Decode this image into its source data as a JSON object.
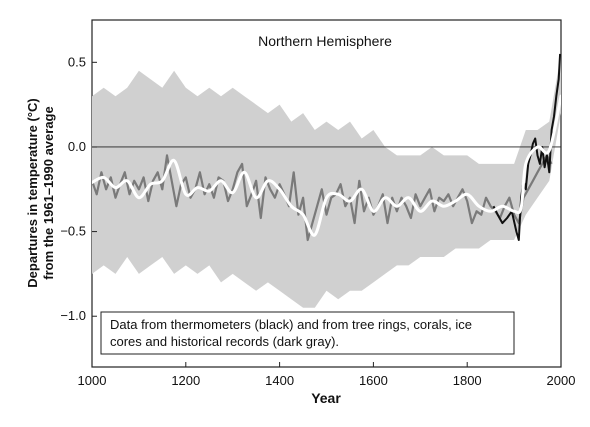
{
  "chart_data": {
    "type": "line",
    "title": "Northern Hemisphere",
    "xlabel": "Year",
    "ylabel_lines": [
      "Departures in temperature (°C)",
      "from the 1961–1990 average"
    ],
    "xlim": [
      1000,
      2000
    ],
    "ylim": [
      -1.3,
      0.75
    ],
    "x_ticks": [
      1000,
      1200,
      1400,
      1600,
      1800,
      2000
    ],
    "y_ticks": [
      0.5,
      0.0,
      -0.5,
      -1.0
    ],
    "y_tick_labels": [
      "0.5",
      "0.0",
      "−0.5",
      "−1.0"
    ],
    "reference_line": 0.0,
    "annotation": {
      "lines": [
        "Data from thermometers (black) and from tree rings, corals, ice",
        "cores and historical records (dark gray)."
      ]
    },
    "colors": {
      "uncertainty": "#d0d0d0",
      "proxy": "#7a7a7a",
      "instrumental": "#111111",
      "smoothed": "#ffffff"
    },
    "series": [
      {
        "role": "uncertainty-band",
        "x": [
          1000,
          1025,
          1050,
          1075,
          1100,
          1125,
          1150,
          1175,
          1200,
          1225,
          1250,
          1275,
          1300,
          1325,
          1350,
          1375,
          1400,
          1425,
          1450,
          1475,
          1500,
          1525,
          1550,
          1575,
          1600,
          1625,
          1650,
          1675,
          1700,
          1725,
          1750,
          1775,
          1800,
          1825,
          1850,
          1875,
          1900,
          1925,
          1950,
          1975,
          2000
        ],
        "upper": [
          0.3,
          0.35,
          0.3,
          0.35,
          0.45,
          0.4,
          0.35,
          0.45,
          0.35,
          0.3,
          0.35,
          0.3,
          0.35,
          0.3,
          0.25,
          0.2,
          0.25,
          0.15,
          0.2,
          0.1,
          0.15,
          0.1,
          0.15,
          0.05,
          0.1,
          0.0,
          -0.05,
          -0.05,
          -0.05,
          0.0,
          -0.05,
          -0.05,
          -0.05,
          -0.1,
          -0.1,
          -0.1,
          -0.1,
          0.1,
          0.1,
          0.15,
          0.55
        ],
        "lower": [
          -0.75,
          -0.7,
          -0.75,
          -0.65,
          -0.75,
          -0.7,
          -0.65,
          -0.75,
          -0.7,
          -0.75,
          -0.7,
          -0.8,
          -0.75,
          -0.8,
          -0.85,
          -0.8,
          -0.85,
          -0.9,
          -0.95,
          -0.95,
          -0.85,
          -0.9,
          -0.85,
          -0.85,
          -0.8,
          -0.75,
          -0.7,
          -0.7,
          -0.65,
          -0.65,
          -0.65,
          -0.6,
          -0.6,
          -0.6,
          -0.55,
          -0.55,
          -0.55,
          -0.4,
          -0.3,
          -0.2,
          0.2
        ]
      },
      {
        "role": "proxy-reconstruction",
        "x": [
          1000,
          1010,
          1020,
          1030,
          1040,
          1050,
          1060,
          1070,
          1080,
          1090,
          1100,
          1110,
          1120,
          1130,
          1140,
          1150,
          1160,
          1170,
          1180,
          1190,
          1200,
          1210,
          1220,
          1230,
          1240,
          1250,
          1260,
          1270,
          1280,
          1290,
          1300,
          1310,
          1320,
          1330,
          1340,
          1350,
          1360,
          1370,
          1380,
          1390,
          1400,
          1410,
          1420,
          1430,
          1440,
          1450,
          1460,
          1470,
          1480,
          1490,
          1500,
          1510,
          1520,
          1530,
          1540,
          1550,
          1560,
          1570,
          1580,
          1590,
          1600,
          1610,
          1620,
          1630,
          1640,
          1650,
          1660,
          1670,
          1680,
          1690,
          1700,
          1710,
          1720,
          1730,
          1740,
          1750,
          1760,
          1770,
          1780,
          1790,
          1800,
          1810,
          1820,
          1830,
          1840,
          1850,
          1860,
          1870,
          1880,
          1890,
          1900,
          1910,
          1920,
          1930,
          1940,
          1950,
          1960,
          1970,
          1980
        ],
        "y": [
          -0.2,
          -0.28,
          -0.15,
          -0.25,
          -0.18,
          -0.3,
          -0.22,
          -0.15,
          -0.28,
          -0.2,
          -0.25,
          -0.18,
          -0.32,
          -0.2,
          -0.15,
          -0.25,
          -0.05,
          -0.2,
          -0.35,
          -0.22,
          -0.18,
          -0.3,
          -0.25,
          -0.15,
          -0.28,
          -0.22,
          -0.3,
          -0.18,
          -0.2,
          -0.32,
          -0.25,
          -0.15,
          -0.1,
          -0.35,
          -0.28,
          -0.2,
          -0.42,
          -0.18,
          -0.25,
          -0.3,
          -0.22,
          -0.28,
          -0.35,
          -0.15,
          -0.4,
          -0.3,
          -0.55,
          -0.45,
          -0.35,
          -0.25,
          -0.4,
          -0.3,
          -0.28,
          -0.22,
          -0.35,
          -0.3,
          -0.45,
          -0.2,
          -0.38,
          -0.3,
          -0.4,
          -0.35,
          -0.28,
          -0.45,
          -0.3,
          -0.38,
          -0.3,
          -0.35,
          -0.42,
          -0.28,
          -0.35,
          -0.3,
          -0.25,
          -0.38,
          -0.3,
          -0.32,
          -0.28,
          -0.35,
          -0.3,
          -0.25,
          -0.32,
          -0.45,
          -0.38,
          -0.4,
          -0.3,
          -0.35,
          -0.38,
          -0.42,
          -0.35,
          -0.3,
          -0.4,
          -0.45,
          -0.3,
          -0.25,
          -0.2,
          -0.15,
          -0.1,
          -0.05,
          -0.1
        ]
      },
      {
        "role": "instrumental",
        "x": [
          1856,
          1865,
          1875,
          1885,
          1895,
          1905,
          1910,
          1915,
          1920,
          1925,
          1930,
          1935,
          1940,
          1945,
          1950,
          1955,
          1960,
          1965,
          1970,
          1975,
          1980,
          1985,
          1990,
          1995,
          1998
        ],
        "y": [
          -0.35,
          -0.4,
          -0.45,
          -0.42,
          -0.38,
          -0.5,
          -0.55,
          -0.3,
          -0.2,
          -0.25,
          -0.1,
          -0.05,
          0.02,
          0.05,
          -0.05,
          -0.1,
          0.0,
          -0.12,
          -0.05,
          -0.15,
          0.1,
          0.18,
          0.3,
          0.4,
          0.55
        ]
      },
      {
        "role": "smoothed",
        "x": [
          1000,
          1025,
          1050,
          1075,
          1100,
          1125,
          1150,
          1175,
          1200,
          1225,
          1250,
          1275,
          1300,
          1325,
          1350,
          1375,
          1400,
          1425,
          1450,
          1475,
          1500,
          1525,
          1550,
          1575,
          1600,
          1625,
          1650,
          1675,
          1700,
          1725,
          1750,
          1775,
          1800,
          1825,
          1850,
          1875,
          1900,
          1915,
          1925,
          1950,
          1975,
          2000
        ],
        "y": [
          -0.21,
          -0.18,
          -0.24,
          -0.2,
          -0.3,
          -0.22,
          -0.2,
          -0.08,
          -0.28,
          -0.24,
          -0.26,
          -0.2,
          -0.27,
          -0.15,
          -0.3,
          -0.2,
          -0.25,
          -0.35,
          -0.4,
          -0.52,
          -0.3,
          -0.28,
          -0.32,
          -0.25,
          -0.38,
          -0.3,
          -0.35,
          -0.3,
          -0.38,
          -0.32,
          -0.35,
          -0.32,
          -0.28,
          -0.35,
          -0.38,
          -0.35,
          -0.38,
          -0.36,
          -0.1,
          0.0,
          -0.02,
          0.3
        ]
      }
    ]
  }
}
